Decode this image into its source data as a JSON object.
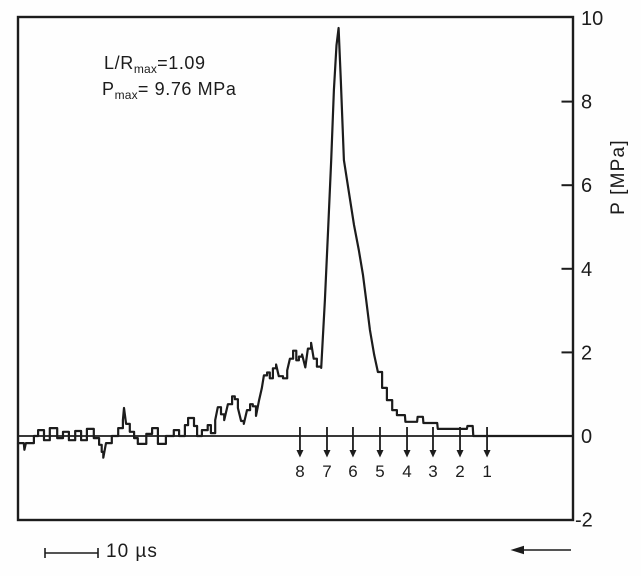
{
  "figure": {
    "annotation_lr": {
      "base": "L/R",
      "sub": "max",
      "rest": "=1.09"
    },
    "annotation_pmax": {
      "base": "P",
      "sub": "max",
      "rest": "= 9.76 MPa"
    }
  },
  "chart_data": {
    "type": "line",
    "title": "",
    "ylabel": "P [MPa]",
    "ylim": [
      -2,
      10
    ],
    "y_ticks": [
      10,
      8,
      6,
      4,
      2,
      0,
      -2
    ],
    "grid": false,
    "legend": "none",
    "parameters": {
      "l_over_r_max": 1.09,
      "p_max_mpa": 9.76
    },
    "x_axis": {
      "unit": "µs",
      "direction": "arrow points left",
      "numeric_labels": false
    },
    "x_scalebar": {
      "label": "10 µs",
      "length_us": 10
    },
    "markers": {
      "labels": [
        "8",
        "7",
        "6",
        "5",
        "4",
        "3",
        "2",
        "1"
      ],
      "t_us": [
        53.2,
        58.3,
        63.2,
        68.3,
        73.4,
        78.3,
        83.4,
        88.5
      ],
      "arrow_direction": "down"
    },
    "series": [
      {
        "name": "pressure trace",
        "x_unit": "µs",
        "y_unit": "MPa",
        "points": [
          [
            0,
            -0.17
          ],
          [
            1.1,
            -0.17
          ],
          [
            1.2,
            -0.33
          ],
          [
            1.5,
            -0.17
          ],
          [
            3,
            0
          ],
          [
            3.8,
            0.14
          ],
          [
            4.9,
            -0.1
          ],
          [
            6,
            0.19
          ],
          [
            7.4,
            -0.05
          ],
          [
            8.5,
            0.1
          ],
          [
            9.6,
            -0.1
          ],
          [
            10.8,
            0.12
          ],
          [
            11.9,
            -0.1
          ],
          [
            13,
            0.17
          ],
          [
            14.3,
            -0.05
          ],
          [
            15.3,
            -0.21
          ],
          [
            15.8,
            -0.38
          ],
          [
            16.1,
            -0.52
          ],
          [
            16.6,
            -0.17
          ],
          [
            17.7,
            0
          ],
          [
            18.9,
            0.19
          ],
          [
            19.8,
            0.38
          ],
          [
            20,
            0.67
          ],
          [
            20.4,
            0.29
          ],
          [
            21.1,
            0.1
          ],
          [
            21.9,
            -0.05
          ],
          [
            22.6,
            -0.19
          ],
          [
            24.2,
            0.05
          ],
          [
            25.3,
            0.19
          ],
          [
            26.4,
            -0.19
          ],
          [
            27.9,
            0
          ],
          [
            29.4,
            0.14
          ],
          [
            30.4,
            0
          ],
          [
            31.5,
            0.26
          ],
          [
            32.1,
            0.43
          ],
          [
            33.2,
            0.24
          ],
          [
            33.8,
            0
          ],
          [
            34.7,
            0.14
          ],
          [
            35.8,
            0.26
          ],
          [
            36.4,
            0.07
          ],
          [
            37.2,
            0.38
          ],
          [
            37.7,
            0.69
          ],
          [
            38.3,
            0.52
          ],
          [
            38.9,
            0.38
          ],
          [
            39.6,
            0.76
          ],
          [
            40.4,
            0.95
          ],
          [
            40.9,
            0.88
          ],
          [
            41.5,
            0.67
          ],
          [
            42.1,
            0.36
          ],
          [
            42.6,
            0.29
          ],
          [
            43.2,
            0.62
          ],
          [
            43.8,
            0.76
          ],
          [
            44.3,
            0.71
          ],
          [
            44.9,
            0.48
          ],
          [
            45.5,
            0.86
          ],
          [
            46,
            1.14
          ],
          [
            46.4,
            1.45
          ],
          [
            47,
            1.52
          ],
          [
            47.5,
            1.38
          ],
          [
            48.1,
            1.62
          ],
          [
            48.7,
            1.71
          ],
          [
            49.2,
            1.43
          ],
          [
            50,
            1.38
          ],
          [
            50.8,
            1.57
          ],
          [
            51.3,
            1.85
          ],
          [
            51.9,
            2.04
          ],
          [
            52.5,
            1.81
          ],
          [
            53,
            1.9
          ],
          [
            53.6,
            1.95
          ],
          [
            54.2,
            1.64
          ],
          [
            54.7,
            2.09
          ],
          [
            55.3,
            2.23
          ],
          [
            55.8,
            1.85
          ],
          [
            56.4,
            1.66
          ],
          [
            57.2,
            1.63
          ],
          [
            57.9,
            3.25
          ],
          [
            58.5,
            4.93
          ],
          [
            59.1,
            6.6
          ],
          [
            59.6,
            8.28
          ],
          [
            60.1,
            9.35
          ],
          [
            60.5,
            9.76
          ],
          [
            60.9,
            8.52
          ],
          [
            61.5,
            6.6
          ],
          [
            62.5,
            5.77
          ],
          [
            63.4,
            5.05
          ],
          [
            64.3,
            4.45
          ],
          [
            65.1,
            3.85
          ],
          [
            65.7,
            3.25
          ],
          [
            66.4,
            2.54
          ],
          [
            67.2,
            1.94
          ],
          [
            67.9,
            1.53
          ],
          [
            68.7,
            1.15
          ],
          [
            69.6,
            0.86
          ],
          [
            70.6,
            0.62
          ],
          [
            71.5,
            0.5
          ],
          [
            73,
            0.5
          ],
          [
            73.1,
            0.34
          ],
          [
            75.3,
            0.34
          ],
          [
            75.4,
            0.46
          ],
          [
            76.4,
            0.46
          ],
          [
            76.5,
            0.31
          ],
          [
            79.1,
            0.31
          ],
          [
            79.2,
            0.17
          ],
          [
            84.7,
            0.17
          ],
          [
            84.8,
            0.24
          ],
          [
            85.8,
            0.24
          ],
          [
            85.9,
            0
          ],
          [
            104.7,
            0
          ]
        ]
      }
    ]
  }
}
